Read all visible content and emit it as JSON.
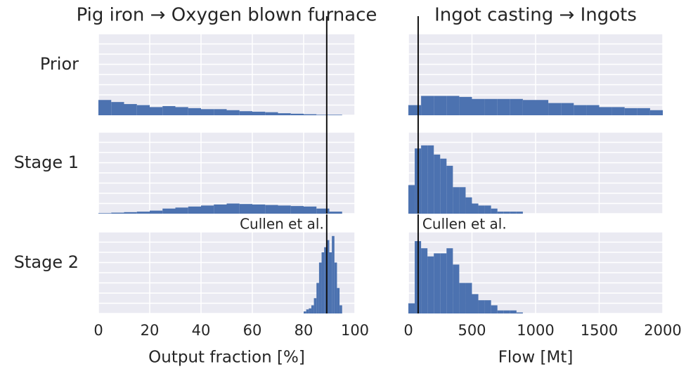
{
  "chart_data": [
    {
      "type": "histogram",
      "title": "Pig iron → Oxygen blown furnace",
      "ylabel": "Prior",
      "color": "#4c72b0",
      "grid": true,
      "bins": [
        0,
        5,
        10,
        15,
        20,
        25,
        30,
        35,
        40,
        45,
        50,
        55,
        60,
        65,
        70,
        75,
        80,
        85,
        90,
        95
      ],
      "values": [
        1.5,
        1.3,
        1.1,
        1.0,
        0.8,
        0.9,
        0.8,
        0.7,
        0.6,
        0.6,
        0.5,
        0.4,
        0.35,
        0.3,
        0.2,
        0.15,
        0.1,
        0.05,
        0.05
      ],
      "xlim": [
        0,
        100
      ],
      "xticks": [
        0,
        20,
        40,
        60,
        80,
        100
      ],
      "ylim": [
        0,
        8
      ],
      "yticks": [
        0,
        1,
        2,
        3,
        4,
        5,
        6,
        7,
        8
      ],
      "reference": 89
    },
    {
      "type": "histogram",
      "title": "Ingot casting → Ingots",
      "color": "#4c72b0",
      "grid": true,
      "bins": [
        0,
        100,
        200,
        300,
        400,
        500,
        600,
        700,
        800,
        900,
        1000,
        1100,
        1200,
        1300,
        1400,
        1500,
        1600,
        1700,
        1800,
        1900,
        2000
      ],
      "values": [
        1.0,
        1.9,
        1.9,
        1.9,
        1.8,
        1.6,
        1.6,
        1.6,
        1.6,
        1.5,
        1.5,
        1.2,
        1.2,
        1.0,
        1.0,
        0.8,
        0.8,
        0.7,
        0.7,
        0.5
      ],
      "xlim": [
        0,
        2000
      ],
      "xticks": [
        0,
        500,
        1000,
        1500,
        2000
      ],
      "ylim": [
        0,
        8
      ],
      "yticks": [
        0,
        1,
        2,
        3,
        4,
        5,
        6,
        7,
        8
      ],
      "reference": 77
    },
    {
      "type": "histogram",
      "ylabel": "Stage 1",
      "color": "#4c72b0",
      "grid": true,
      "bins": [
        0,
        5,
        10,
        15,
        20,
        25,
        30,
        35,
        40,
        45,
        50,
        55,
        60,
        65,
        70,
        75,
        80,
        85,
        90,
        95
      ],
      "values": [
        0.05,
        0.1,
        0.15,
        0.2,
        0.3,
        0.5,
        0.6,
        0.7,
        0.8,
        0.9,
        1.0,
        0.95,
        0.9,
        0.85,
        0.8,
        0.75,
        0.7,
        0.5,
        0.2
      ],
      "xlim": [
        0,
        100
      ],
      "xticks": [
        0,
        20,
        40,
        60,
        80,
        100
      ],
      "ylim": [
        0,
        8
      ],
      "yticks": [
        0,
        1,
        2,
        3,
        4,
        5,
        6,
        7,
        8
      ],
      "reference": 89
    },
    {
      "type": "histogram",
      "color": "#4c72b0",
      "grid": true,
      "bins": [
        0,
        50,
        100,
        150,
        200,
        250,
        300,
        350,
        400,
        450,
        500,
        550,
        600,
        650,
        700,
        750,
        800,
        850,
        900
      ],
      "values": [
        2.8,
        6.4,
        6.7,
        6.7,
        5.8,
        5.4,
        4.7,
        2.6,
        2.6,
        1.6,
        1.0,
        0.8,
        0.8,
        0.5,
        0.2,
        0.2,
        0.2,
        0.2
      ],
      "xlim": [
        0,
        2000
      ],
      "xticks": [
        0,
        500,
        1000,
        1500,
        2000
      ],
      "ylim": [
        0,
        8
      ],
      "yticks": [
        0,
        1,
        2,
        3,
        4,
        5,
        6,
        7,
        8
      ],
      "reference": 77
    },
    {
      "type": "histogram",
      "ylabel": "Stage 2",
      "xlabel": "Output fraction [%]",
      "annotation": "Cullen et al.",
      "color": "#4c72b0",
      "grid": true,
      "bins": [
        80,
        81,
        82,
        83,
        84,
        85,
        86,
        87,
        88,
        89,
        90,
        91,
        92,
        93,
        94,
        95
      ],
      "values": [
        0.2,
        0.4,
        0.5,
        0.8,
        1.5,
        3.0,
        5.0,
        6.0,
        6.5,
        7.2,
        6.0,
        7.6,
        5.0,
        2.5,
        0.8
      ],
      "xlim": [
        0,
        100
      ],
      "xticks": [
        0,
        20,
        40,
        60,
        80,
        100
      ],
      "ylim": [
        0,
        8
      ],
      "yticks": [
        0,
        1,
        2,
        3,
        4,
        5,
        6,
        7,
        8
      ],
      "reference": 89
    },
    {
      "type": "histogram",
      "xlabel": "Flow [Mt]",
      "annotation": "Cullen et al.",
      "color": "#4c72b0",
      "grid": true,
      "bins": [
        0,
        50,
        100,
        150,
        200,
        250,
        300,
        350,
        400,
        450,
        500,
        550,
        600,
        650,
        700,
        750,
        800,
        850,
        900
      ],
      "values": [
        1.0,
        7.1,
        6.4,
        5.6,
        5.9,
        5.9,
        6.4,
        4.8,
        3.0,
        3.0,
        1.9,
        1.3,
        1.3,
        0.8,
        0.3,
        0.3,
        0.3,
        0.1
      ],
      "xlim": [
        0,
        2000
      ],
      "xticks": [
        0,
        500,
        1000,
        1500,
        2000
      ],
      "ylim": [
        0,
        8
      ],
      "yticks": [
        0,
        1,
        2,
        3,
        4,
        5,
        6,
        7,
        8
      ],
      "reference": 77
    }
  ]
}
